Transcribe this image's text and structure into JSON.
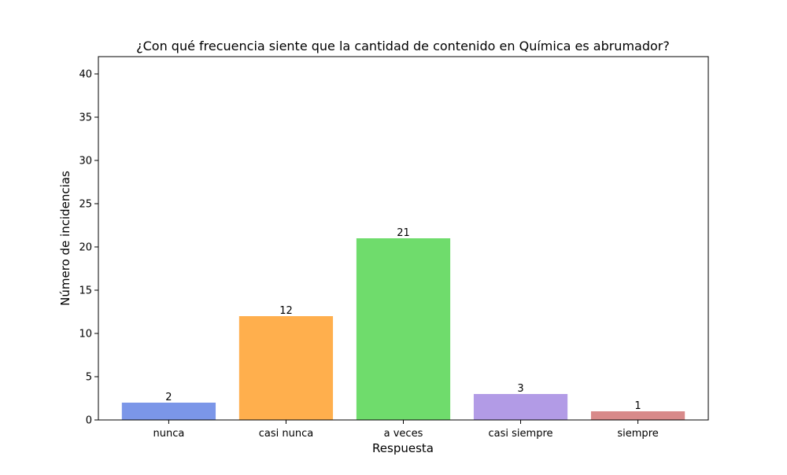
{
  "chart_data": {
    "type": "bar",
    "title": "¿Con qué frecuencia siente que la cantidad de contenido en Química es abrumador?",
    "xlabel": "Respuesta",
    "ylabel": "Número de incidencias",
    "categories": [
      "nunca",
      "casi nunca",
      "a veces",
      "casi siempre",
      "siempre"
    ],
    "values": [
      2,
      12,
      21,
      3,
      1
    ],
    "data_labels": [
      "2",
      "12",
      "21",
      "3",
      "1"
    ],
    "colors": [
      "#7b96e8",
      "#ffaf4d",
      "#6fdc6c",
      "#b29be6",
      "#d88a8a"
    ],
    "ylim": [
      0,
      42
    ],
    "yticks": [
      0,
      5,
      10,
      15,
      20,
      25,
      30,
      35,
      40
    ],
    "grid": false,
    "legend": "none"
  }
}
